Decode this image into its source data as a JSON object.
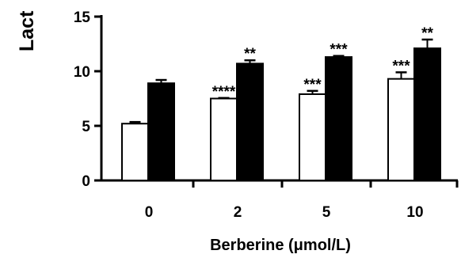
{
  "chart_data": {
    "type": "bar",
    "title": "",
    "xlabel": "Berberine (μmol/L)",
    "ylabel": "Lact",
    "categories": [
      "0",
      "2",
      "5",
      "10"
    ],
    "ylim": [
      0,
      15
    ],
    "yticks": [
      0,
      5,
      10,
      15
    ],
    "grid": false,
    "legend": "none",
    "series": [
      {
        "color": "#ffffff",
        "values": [
          5.2,
          7.5,
          7.9,
          9.3
        ],
        "errors": [
          0.15,
          0.05,
          0.3,
          0.6
        ],
        "significance": [
          "",
          "****",
          "***",
          "***"
        ]
      },
      {
        "color": "#000000",
        "values": [
          8.9,
          10.7,
          11.3,
          12.1
        ],
        "errors": [
          0.3,
          0.3,
          0.1,
          0.8
        ],
        "significance": [
          "",
          "**",
          "***",
          "**"
        ]
      }
    ]
  }
}
